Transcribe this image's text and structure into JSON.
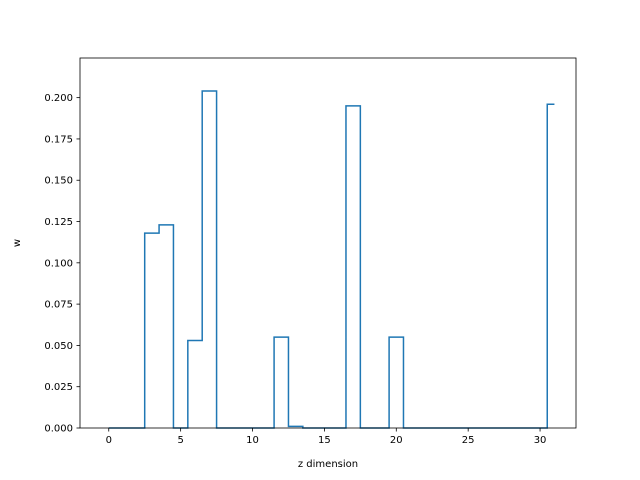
{
  "chart_data": {
    "type": "line",
    "drawstyle": "steps-mid",
    "xlabel": "z dimension",
    "ylabel": "w",
    "xlim": [
      -2.0,
      32.5
    ],
    "ylim": [
      0.0,
      0.224
    ],
    "xticks": [
      0,
      5,
      10,
      15,
      20,
      25,
      30
    ],
    "xtick_labels": [
      "0",
      "5",
      "10",
      "15",
      "20",
      "25",
      "30"
    ],
    "yticks": [
      0.0,
      0.025,
      0.05,
      0.075,
      0.1,
      0.125,
      0.15,
      0.175,
      0.2
    ],
    "ytick_labels": [
      "0.000",
      "0.025",
      "0.050",
      "0.075",
      "0.100",
      "0.125",
      "0.150",
      "0.175",
      "0.200"
    ],
    "grid": false,
    "series": [
      {
        "color": "#1f77b4",
        "x": [
          0,
          1,
          2,
          3,
          4,
          5,
          6,
          7,
          8,
          9,
          10,
          11,
          12,
          13,
          14,
          15,
          16,
          17,
          18,
          19,
          20,
          21,
          22,
          23,
          24,
          25,
          26,
          27,
          28,
          29,
          30,
          31
        ],
        "y": [
          0.0,
          0.0,
          0.0,
          0.118,
          0.123,
          0.0,
          0.053,
          0.204,
          0.0,
          0.0,
          0.0,
          0.0,
          0.055,
          0.001,
          0.0,
          0.0,
          0.0,
          0.195,
          0.0,
          0.0,
          0.055,
          0.0,
          0.0,
          0.0,
          0.0,
          0.0,
          0.0,
          0.0,
          0.0,
          0.0,
          0.0,
          0.196
        ]
      }
    ]
  }
}
